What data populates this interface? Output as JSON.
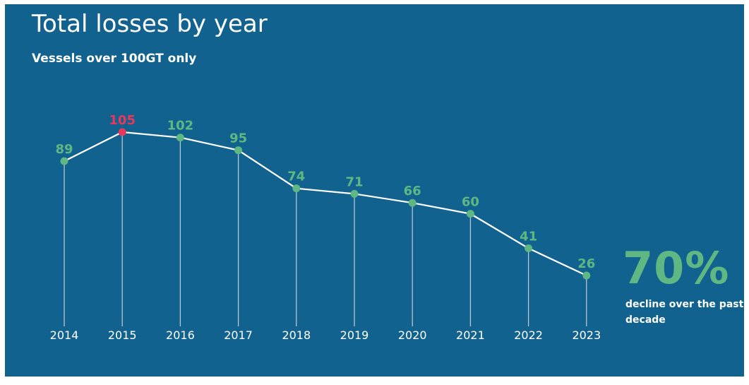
{
  "chart_data": {
    "type": "line",
    "title": "Total losses by year",
    "subtitle": "Vessels over 100GT only",
    "categories": [
      "2014",
      "2015",
      "2016",
      "2017",
      "2018",
      "2019",
      "2020",
      "2021",
      "2022",
      "2023"
    ],
    "values": [
      89,
      105,
      102,
      95,
      74,
      71,
      66,
      60,
      41,
      26
    ],
    "highlight_index": 1,
    "colors": {
      "background": "#11628f",
      "line": "#ffffff",
      "point": "#5fb883",
      "label": "#5fb883",
      "highlight": "#e8375a",
      "dropline": "#b9c6cf",
      "tick_label": "#ffffff"
    },
    "grid": false,
    "legend": "none",
    "callout": {
      "value": "70%",
      "text": "decline over the past decade"
    }
  }
}
